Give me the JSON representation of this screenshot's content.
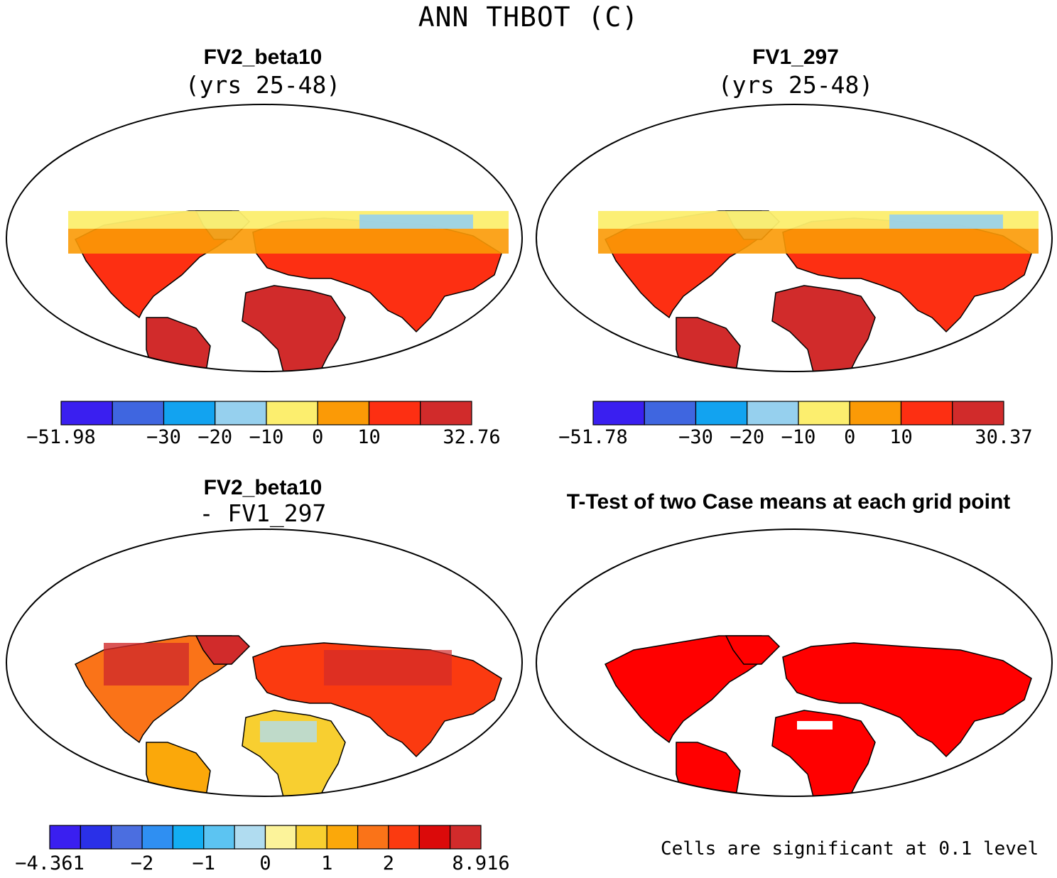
{
  "figure": {
    "title": "ANN THBOT (C)"
  },
  "panels": {
    "top_left": {
      "title": "FV2_beta10",
      "subtitle": "(yrs 25-48)",
      "colorbar": {
        "colors": [
          "#3a1ff0",
          "#3f66e0",
          "#12a3f0",
          "#96d0ee",
          "#fcee6e",
          "#fb9a06",
          "#fd2f12",
          "#d12b2b"
        ],
        "labels": [
          "-51.98",
          "-30",
          "-20",
          "-10",
          "0",
          "10",
          "32.76"
        ],
        "label_boundaries": [
          0,
          2,
          3,
          4,
          5,
          6,
          8
        ]
      }
    },
    "top_right": {
      "title": "FV1_297",
      "subtitle": "(yrs 25-48)",
      "colorbar": {
        "colors": [
          "#3a1ff0",
          "#3f66e0",
          "#12a3f0",
          "#96d0ee",
          "#fcee6e",
          "#fb9a06",
          "#fd2f12",
          "#d12b2b"
        ],
        "labels": [
          "-51.78",
          "-30",
          "-20",
          "-10",
          "0",
          "10",
          "30.37"
        ],
        "label_boundaries": [
          0,
          2,
          3,
          4,
          5,
          6,
          8
        ]
      }
    },
    "bottom_left": {
      "title": "FV2_beta10",
      "subtitle": "- FV1_297",
      "colorbar": {
        "colors": [
          "#3a1ff0",
          "#2a30e8",
          "#4b6ee0",
          "#2f8ff2",
          "#13aef2",
          "#5cc4f2",
          "#b0dcf0",
          "#fcf39a",
          "#f8cf30",
          "#fba80a",
          "#fa7318",
          "#fb3a10",
          "#db0a0a",
          "#d12b2b"
        ],
        "labels": [
          "-4.361",
          "-2",
          "-1",
          "0",
          "1",
          "2",
          "8.916"
        ],
        "label_boundaries": [
          0,
          3,
          5,
          7,
          9,
          11,
          14
        ]
      }
    },
    "bottom_right": {
      "title": "T-Test of two Case means at each grid point",
      "note": "Cells are significant at 0.1 level"
    }
  },
  "map_colors": {
    "ocean": "#ffffff",
    "coast": "#000000",
    "warm_land": "#d12b2b",
    "hot_red": "#fd2f12",
    "orange": "#fb9a06",
    "yellow": "#fcee6e",
    "light_blue": "#96d0ee",
    "blue": "#12a3f0",
    "deep_blue": "#3a1ff0",
    "significant": "#ff0000"
  }
}
